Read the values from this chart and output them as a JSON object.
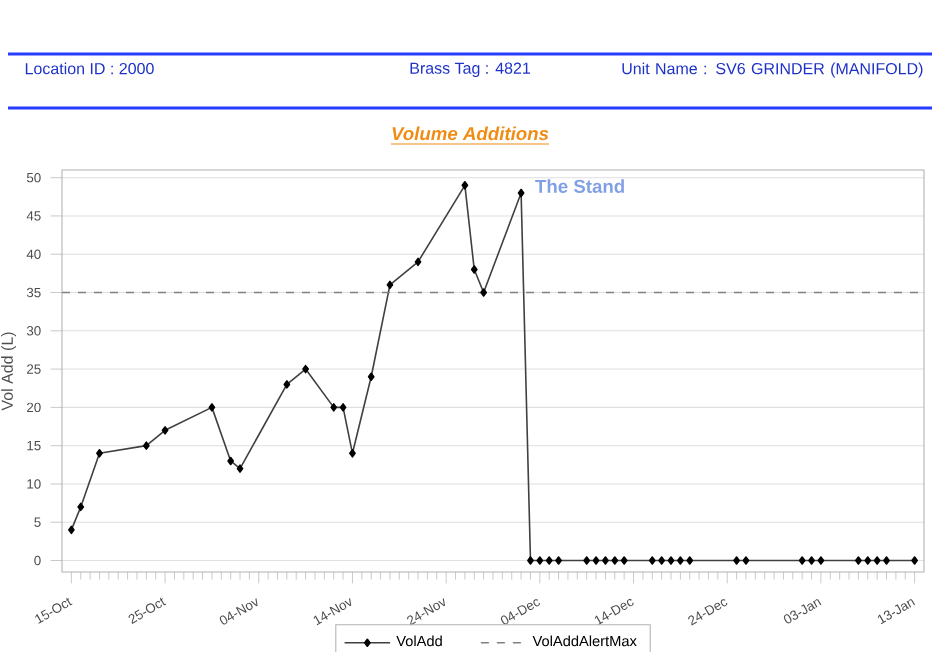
{
  "chart_data": {
    "type": "line",
    "title": "Volume Additions",
    "ylabel": "Vol Add (L)",
    "annotations": [
      "Location ID : 2000",
      "Brass Tag : 4821",
      "Unit Name : SV6 GRINDER (MANIFOLD)",
      "The Stand"
    ],
    "x": [
      "2000-10-15",
      "2000-10-16",
      "2000-10-18",
      "2000-10-23",
      "2000-10-25",
      "2000-10-30",
      "2000-11-01",
      "2000-11-02",
      "2000-11-07",
      "2000-11-09",
      "2000-11-12",
      "2000-11-13",
      "2000-11-14",
      "2000-11-16",
      "2000-11-18",
      "2000-11-21",
      "2000-11-26",
      "2000-11-27",
      "2000-11-28",
      "2000-12-02",
      "2000-12-03",
      "2000-12-04",
      "2000-12-05",
      "2000-12-06",
      "2000-12-09",
      "2000-12-10",
      "2000-12-11",
      "2000-12-12",
      "2000-12-13",
      "2000-12-16",
      "2000-12-17",
      "2000-12-18",
      "2000-12-19",
      "2000-12-20",
      "2000-12-25",
      "2000-12-26",
      "2001-01-01",
      "2001-01-02",
      "2001-01-03",
      "2001-01-07",
      "2001-01-08",
      "2001-01-09",
      "2001-01-10",
      "2001-01-13"
    ],
    "series": [
      {
        "name": "VolAdd",
        "color": "#404040",
        "values": [
          4,
          7,
          14,
          15,
          17,
          20,
          13,
          12,
          23,
          25,
          20,
          20,
          14,
          24,
          36,
          39,
          49,
          38,
          35,
          48,
          0,
          0,
          0,
          0,
          0,
          0,
          0,
          0,
          0,
          0,
          0,
          0,
          0,
          0,
          0,
          0,
          0,
          0,
          0,
          0,
          0,
          0,
          0,
          0
        ]
      }
    ],
    "xlim": [
      "2000-10-14",
      "2001-01-14"
    ],
    "xticks": [
      {
        "value": "2000-10-15",
        "label": "15-Oct"
      },
      {
        "value": "2000-10-25",
        "label": "25-Oct"
      },
      {
        "value": "2000-11-04",
        "label": "04-Nov"
      },
      {
        "value": "2000-11-14",
        "label": "14-Nov"
      },
      {
        "value": "2000-11-24",
        "label": "24-Nov"
      },
      {
        "value": "2000-12-04",
        "label": "04-Dec"
      },
      {
        "value": "2000-12-14",
        "label": "14-Dec"
      },
      {
        "value": "2000-12-24",
        "label": "24-Dec"
      },
      {
        "value": "2001-01-03",
        "label": "03-Jan"
      },
      {
        "value": "2001-01-13",
        "label": "13-Jan"
      }
    ],
    "ylim": [
      -1.5,
      51
    ],
    "yticks": [
      0,
      5,
      10,
      15,
      20,
      25,
      30,
      35,
      40,
      45,
      50
    ],
    "ref_lines": [
      {
        "axis": "y",
        "value": 35,
        "label": "VolAddAlertMax",
        "color": "#808080",
        "line_style": "dashed"
      }
    ],
    "grid": "y",
    "legend": "bottom",
    "marker": "diamond",
    "line_style": "solid"
  }
}
